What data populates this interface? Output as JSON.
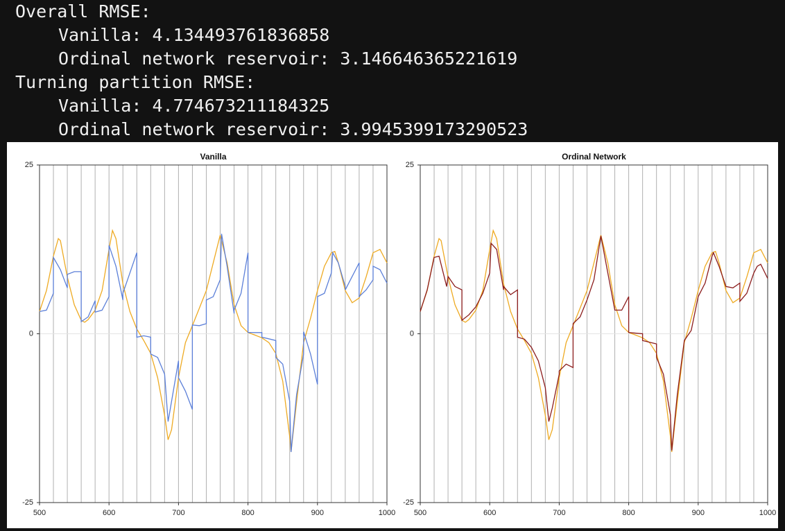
{
  "output": {
    "lines": [
      {
        "text": "Overall RMSE:",
        "indent": 0
      },
      {
        "text": "Vanilla: 4.134493761836858",
        "indent": 1
      },
      {
        "text": "Ordinal network reservoir: 3.146646365221619",
        "indent": 1
      },
      {
        "text": "Turning partition RMSE:",
        "indent": 0
      },
      {
        "text": "Vanilla: 4.774673211184325",
        "indent": 1
      },
      {
        "text": "Ordinal network reservoir: 3.9945399173290523",
        "indent": 1
      }
    ]
  },
  "chart_data": [
    {
      "type": "line",
      "title": "Vanilla",
      "xlim": [
        500,
        1000
      ],
      "ylim": [
        -25,
        25
      ],
      "xticks": [
        500,
        600,
        700,
        800,
        900,
        1000
      ],
      "yticks": [
        -25,
        0,
        25
      ],
      "vlines": [
        520,
        540,
        560,
        580,
        600,
        620,
        640,
        660,
        680,
        700,
        720,
        740,
        760,
        780,
        800,
        820,
        840,
        860,
        880,
        900,
        920,
        940,
        960,
        980
      ],
      "series": [
        {
          "color": "#eeaa22",
          "x": [
            500,
            510,
            520,
            527,
            530,
            540,
            550,
            560,
            565,
            570,
            580,
            590,
            600,
            605,
            610,
            620,
            630,
            640,
            650,
            660,
            670,
            680,
            685,
            690,
            700,
            710,
            720,
            730,
            740,
            750,
            760,
            770,
            780,
            790,
            800,
            810,
            820,
            830,
            840,
            850,
            860,
            862,
            870,
            880,
            890,
            900,
            910,
            920,
            925,
            930,
            940,
            950,
            960,
            970,
            980,
            990,
            1000
          ],
          "values": [
            3.3,
            6.4,
            11.5,
            14.1,
            13.8,
            8.4,
            4.3,
            2.0,
            1.7,
            2.1,
            3.5,
            6.4,
            12.5,
            15.3,
            14.1,
            7.4,
            3.3,
            0.7,
            -1.0,
            -2.9,
            -6.5,
            -12.1,
            -15.7,
            -14.2,
            -6.5,
            -1.3,
            1.2,
            3.8,
            6.4,
            10.5,
            14.6,
            10.5,
            4.3,
            1.2,
            0.2,
            -0.2,
            -0.6,
            -1.3,
            -2.9,
            -7,
            -15.2,
            -17.5,
            -10.1,
            -1.3,
            2.3,
            6.4,
            10,
            12,
            12.2,
            10.5,
            6.4,
            4.6,
            5.3,
            8.4,
            12,
            12.5,
            10.5
          ]
        },
        {
          "color": "#5b7fd8",
          "x": [
            500,
            510,
            520,
            520,
            530,
            540,
            540,
            550,
            560,
            560,
            570,
            580,
            580,
            590,
            600,
            600,
            610,
            620,
            620,
            630,
            640,
            640,
            650,
            660,
            660,
            670,
            680,
            685,
            700,
            700,
            710,
            720,
            720,
            730,
            740,
            740,
            750,
            760,
            762,
            770,
            780,
            780,
            790,
            800,
            800,
            810,
            820,
            820,
            840,
            840,
            850,
            860,
            862,
            870,
            880,
            880,
            890,
            900,
            900,
            910,
            920,
            922,
            930,
            940,
            940,
            950,
            960,
            960,
            970,
            980,
            980,
            990,
            1000
          ],
          "values": [
            3.3,
            3.5,
            6,
            11.3,
            9.5,
            6.8,
            8.8,
            9.2,
            9.2,
            1.8,
            2.5,
            4.9,
            3.2,
            3.5,
            5.5,
            13.1,
            10,
            5,
            6,
            9,
            12,
            -0.5,
            -0.3,
            -0.5,
            -3,
            -3.5,
            -6,
            -13,
            -4,
            -6.5,
            -8.5,
            -11.2,
            1.3,
            1.2,
            1.5,
            5,
            5.5,
            8,
            14.8,
            10,
            3,
            3.5,
            6,
            12,
            0.2,
            0.2,
            0.2,
            -0.5,
            -1,
            -3.5,
            -4.5,
            -10,
            -17.5,
            -9,
            -3,
            0.3,
            -3,
            -7.5,
            5.5,
            6,
            9,
            12,
            10.5,
            7,
            6.5,
            8.5,
            10.5,
            5.5,
            6.5,
            8,
            10,
            9.5,
            7.5
          ]
        }
      ]
    },
    {
      "type": "line",
      "title": "Ordinal Network",
      "xlim": [
        500,
        1000
      ],
      "ylim": [
        -25,
        25
      ],
      "xticks": [
        500,
        600,
        700,
        800,
        900,
        1000
      ],
      "yticks": [
        -25,
        0,
        25
      ],
      "vlines": [
        520,
        540,
        560,
        580,
        600,
        620,
        640,
        660,
        680,
        700,
        720,
        740,
        760,
        780,
        800,
        820,
        840,
        860,
        880,
        900,
        920,
        940,
        960,
        980
      ],
      "series": [
        {
          "color": "#eeaa22",
          "x": [
            500,
            510,
            520,
            527,
            530,
            540,
            550,
            560,
            565,
            570,
            580,
            590,
            600,
            605,
            610,
            620,
            630,
            640,
            650,
            660,
            670,
            680,
            685,
            690,
            700,
            710,
            720,
            730,
            740,
            750,
            760,
            770,
            780,
            790,
            800,
            810,
            820,
            830,
            840,
            850,
            860,
            862,
            870,
            880,
            890,
            900,
            910,
            920,
            925,
            930,
            940,
            950,
            960,
            970,
            980,
            990,
            1000
          ],
          "values": [
            3.3,
            6.4,
            11.5,
            14.1,
            13.8,
            8.4,
            4.3,
            2.0,
            1.7,
            2.1,
            3.5,
            6.4,
            12.5,
            15.3,
            14.1,
            7.4,
            3.3,
            0.7,
            -1.0,
            -2.9,
            -6.5,
            -12.1,
            -15.7,
            -14.2,
            -6.5,
            -1.3,
            1.2,
            3.8,
            6.4,
            10.5,
            14.6,
            10.5,
            4.3,
            1.2,
            0.2,
            -0.2,
            -0.6,
            -1.3,
            -2.9,
            -7,
            -15.2,
            -17.5,
            -10.1,
            -1.3,
            2.3,
            6.4,
            10,
            12,
            12.2,
            10.5,
            6.4,
            4.6,
            5.3,
            8.4,
            12,
            12.5,
            10.5
          ]
        },
        {
          "color": "#8b1c1c",
          "x": [
            500,
            510,
            520,
            527,
            538,
            540,
            550,
            560,
            560,
            570,
            580,
            590,
            600,
            602,
            610,
            620,
            620,
            630,
            640,
            640,
            650,
            660,
            670,
            680,
            685,
            690,
            700,
            700,
            710,
            720,
            720,
            730,
            740,
            750,
            760,
            770,
            780,
            790,
            800,
            800,
            820,
            820,
            840,
            840,
            850,
            860,
            862,
            870,
            880,
            890,
            900,
            910,
            920,
            922,
            930,
            940,
            950,
            960,
            960,
            970,
            980,
            985,
            990,
            1000
          ],
          "values": [
            3.3,
            6.5,
            11.3,
            11.5,
            7,
            8.5,
            7,
            6.5,
            2,
            2.8,
            4,
            6,
            9,
            13.4,
            12.5,
            6.5,
            7,
            5.8,
            6.5,
            -0.5,
            -0.8,
            -2,
            -4,
            -8,
            -13,
            -11,
            -6,
            -5.5,
            -4.5,
            -5,
            1.5,
            2.5,
            5,
            8,
            14.5,
            9,
            3.5,
            3.5,
            5.5,
            0.2,
            0,
            -1,
            -1.5,
            -3.5,
            -6,
            -12,
            -17.3,
            -9,
            -1,
            0.5,
            5.5,
            7.5,
            11.5,
            12,
            10,
            7,
            6.8,
            7.5,
            4.8,
            6,
            9,
            10,
            10.3,
            8.2
          ]
        }
      ]
    }
  ]
}
